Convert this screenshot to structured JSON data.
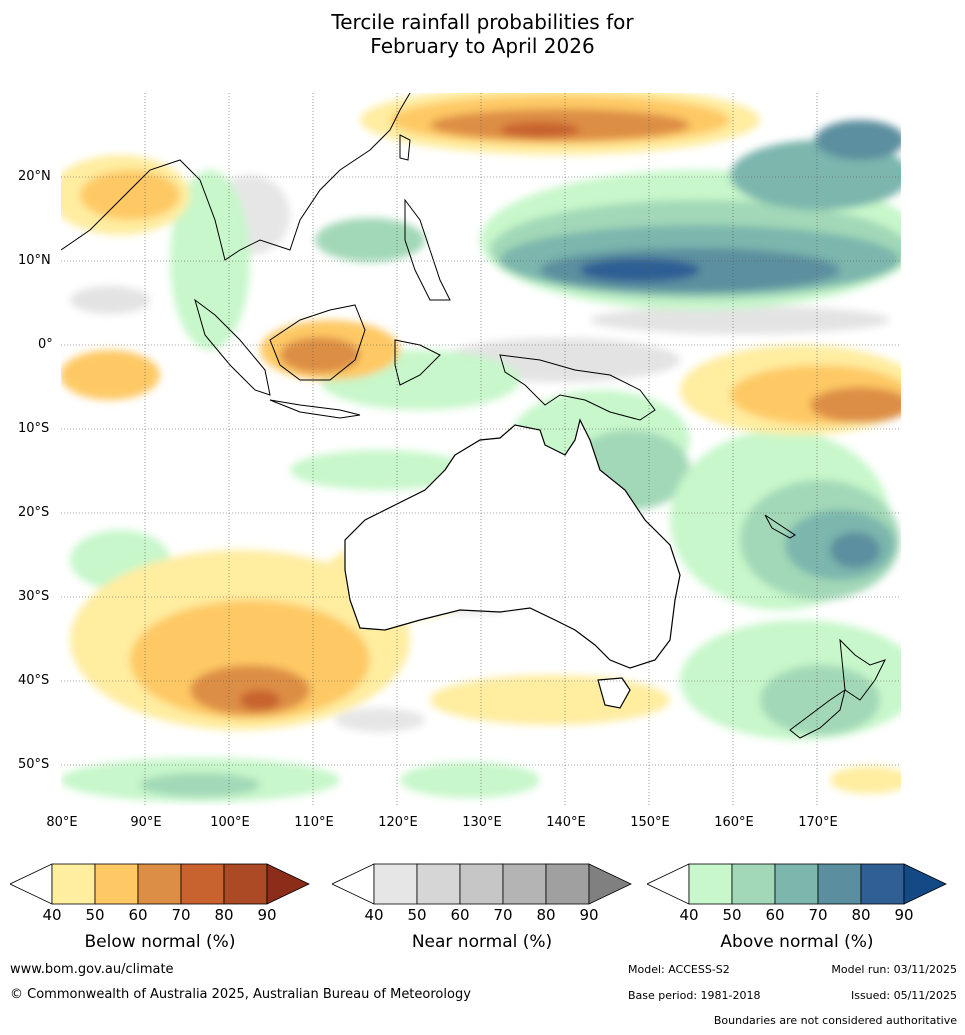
{
  "title": {
    "line1": "Tercile rainfall probabilities for",
    "line2": "February to April 2026"
  },
  "map": {
    "lat_labels": [
      "20°N",
      "10°N",
      "0°",
      "10°S",
      "20°S",
      "30°S",
      "40°S",
      "50°S"
    ],
    "lon_labels": [
      "80°E",
      "90°E",
      "100°E",
      "110°E",
      "120°E",
      "130°E",
      "140°E",
      "150°E",
      "160°E",
      "170°E"
    ]
  },
  "colorbars": {
    "below": {
      "title": "Below normal (%)",
      "ticks": [
        "40",
        "50",
        "60",
        "70",
        "80",
        "90"
      ],
      "colors": [
        "#ffeda0",
        "#fec965",
        "#dd8e45",
        "#c8622e",
        "#ad4a26",
        "#8c2d1a"
      ]
    },
    "near": {
      "title": "Near normal (%)",
      "ticks": [
        "40",
        "50",
        "60",
        "70",
        "80",
        "90"
      ],
      "colors": [
        "#e6e6e6",
        "#d6d6d6",
        "#c6c6c6",
        "#b4b4b4",
        "#a0a0a0",
        "#808080"
      ]
    },
    "above": {
      "title": "Above normal (%)",
      "ticks": [
        "40",
        "50",
        "60",
        "70",
        "80",
        "90"
      ],
      "colors": [
        "#c7f7ca",
        "#a2d8b7",
        "#7cb6ad",
        "#5b8f9f",
        "#2f5f94",
        "#134a86"
      ]
    }
  },
  "footer": {
    "url": "www.bom.gov.au/climate",
    "copyright": "© Commonwealth of Australia 2025, Australian Bureau of Meteorology",
    "model": "Model: ACCESS-S2",
    "model_run": "Model run: 03/11/2025",
    "base_period": "Base period: 1981-2018",
    "issued": "Issued: 05/11/2025",
    "disclaimer": "Boundaries are not considered authoritative"
  }
}
